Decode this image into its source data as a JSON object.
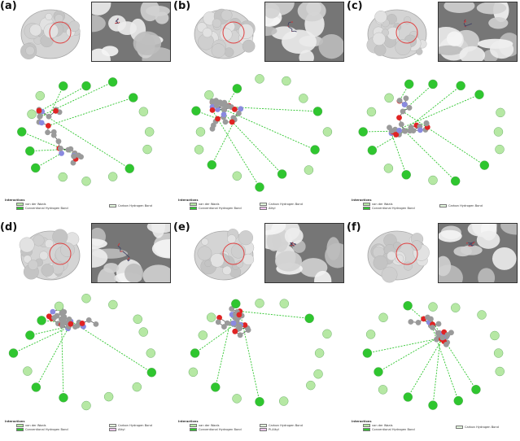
{
  "figure": {
    "panels": [
      {
        "label": "(a)",
        "legend_title": "Interactions",
        "legend": [
          {
            "text": "van der Waals",
            "color": "#b6e8a4"
          },
          {
            "text": "Conventional Hydrogen Bond",
            "color": "#2fc62f"
          },
          {
            "text": "Carbon Hydrogen Bond",
            "color": "#e4f7de"
          }
        ]
      },
      {
        "label": "(b)",
        "legend_title": "Interactions",
        "legend": [
          {
            "text": "van der Waals",
            "color": "#b6e8a4"
          },
          {
            "text": "Conventional Hydrogen Bond",
            "color": "#2fc62f"
          },
          {
            "text": "Carbon Hydrogen Bond",
            "color": "#e4f7de"
          },
          {
            "text": "Alkyl",
            "color": "#f1c6ef"
          }
        ]
      },
      {
        "label": "(c)",
        "legend_title": "Interactions",
        "legend": [
          {
            "text": "van der Waals",
            "color": "#b6e8a4"
          },
          {
            "text": "Conventional Hydrogen Bond",
            "color": "#2fc62f"
          },
          {
            "text": "Carbon Hydrogen Bond",
            "color": "#e4f7de"
          }
        ]
      },
      {
        "label": "(d)",
        "legend_title": "Interactions",
        "legend": [
          {
            "text": "van der Waals",
            "color": "#b6e8a4"
          },
          {
            "text": "Conventional Hydrogen Bond",
            "color": "#2fc62f"
          },
          {
            "text": "Carbon Hydrogen Bond",
            "color": "#e4f7de"
          },
          {
            "text": "Alkyl",
            "color": "#f1c6ef"
          }
        ]
      },
      {
        "label": "(e)",
        "legend_title": "Interactions",
        "legend": [
          {
            "text": "van der Waals",
            "color": "#b6e8a4"
          },
          {
            "text": "Conventional Hydrogen Bond",
            "color": "#2fc62f"
          },
          {
            "text": "Carbon Hydrogen Bond",
            "color": "#e4f7de"
          },
          {
            "text": "Pi-Alkyl",
            "color": "#f1c6ef"
          }
        ]
      },
      {
        "label": "(f)",
        "legend_title": "Interactions",
        "legend": [
          {
            "text": "van der Waals",
            "color": "#b6e8a4"
          },
          {
            "text": "Conventional Hydrogen Bond",
            "color": "#2fc62f"
          },
          {
            "text": "Carbon Hydrogen Bond",
            "color": "#e4f7de"
          }
        ]
      }
    ],
    "colors": {
      "vdw": "#b6e8a4",
      "hbond": "#2fc62f",
      "carbon_h": "#e4f7de",
      "alkyl": "#f1c6ef",
      "atom_c": "#9a9a9a",
      "atom_o": "#e02424",
      "atom_n": "#8a8ae0",
      "surface_circle": "#e04040"
    }
  }
}
